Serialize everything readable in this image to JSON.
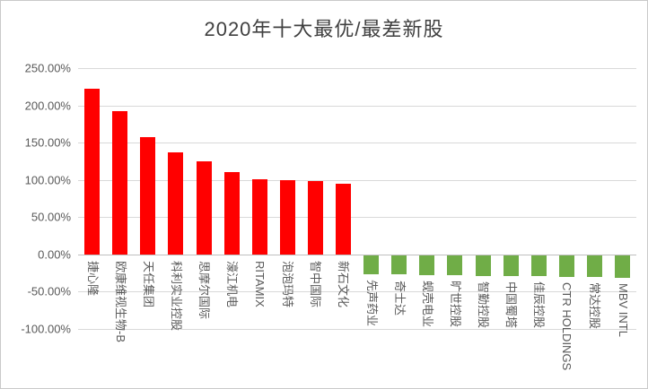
{
  "chart_data": {
    "type": "bar",
    "title": "2020年十大最优/最差新股",
    "categories": [
      "捷心隆",
      "欧康维视生物-B",
      "天任集团",
      "科利实业控股",
      "思摩尔国际",
      "濠江机电",
      "RITAMIX",
      "泡泡玛特",
      "智中国际",
      "新石文化",
      "先声药业",
      "奇士达",
      "蚬壳电业",
      "旷世控股",
      "智勤控股",
      "中国蜀塔",
      "佳辰控股",
      "CTR HOLDINGS",
      "常达控股",
      "MBV INTL"
    ],
    "values": [
      222,
      192,
      157,
      137,
      125,
      110,
      101,
      100,
      99,
      95,
      -25,
      -26,
      -27,
      -27,
      -28,
      -28,
      -28,
      -29,
      -29,
      -30
    ],
    "ylim": [
      -100,
      250
    ],
    "y_ticks": [
      {
        "value": 250,
        "label": "250.00%"
      },
      {
        "value": 200,
        "label": "200.00%"
      },
      {
        "value": 150,
        "label": "150.00%"
      },
      {
        "value": 100,
        "label": "100.00%"
      },
      {
        "value": 50,
        "label": "50.00%"
      },
      {
        "value": 0,
        "label": "0.00%"
      },
      {
        "value": -50,
        "label": "-50.00%"
      },
      {
        "value": -100,
        "label": "-100.00%"
      }
    ],
    "grid": true,
    "legend": "none",
    "category_label_rotation_deg": 90
  },
  "colors": {
    "positive_bar": "#FF0000",
    "negative_bar": "#70AD47",
    "gridline": "#D9D9D9",
    "axis_line": "#BFBFBF",
    "tick_text": "#595959",
    "title_text": "#404040",
    "background": "#FFFFFF"
  }
}
